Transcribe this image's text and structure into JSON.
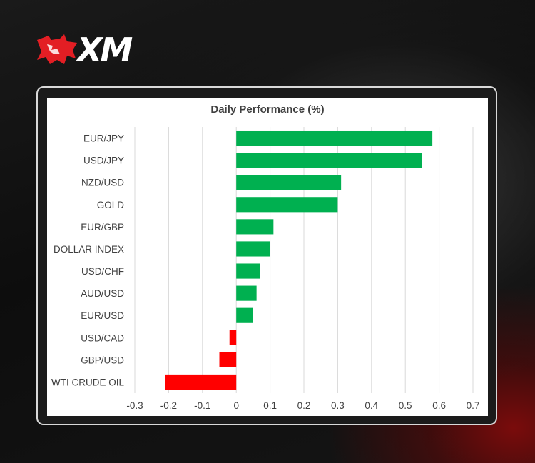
{
  "brand": {
    "logo_text": "XM",
    "logo_icon": "bull-icon",
    "colors": {
      "logo_red": "#e31e24",
      "logo_text": "#ffffff"
    }
  },
  "chart_data": {
    "type": "bar",
    "orientation": "horizontal",
    "title": "Daily Performance (%)",
    "xlabel": "",
    "ylabel": "",
    "xlim": [
      -0.3,
      0.7
    ],
    "x_ticks": [
      -0.3,
      -0.2,
      -0.1,
      0,
      0.1,
      0.2,
      0.3,
      0.4,
      0.5,
      0.6,
      0.7
    ],
    "x_tick_labels": [
      "-0.3",
      "-0.2",
      "-0.1",
      "0",
      "0.1",
      "0.2",
      "0.3",
      "0.4",
      "0.5",
      "0.6",
      "0.7"
    ],
    "grid": "vertical",
    "legend": "none",
    "categories": [
      "EUR/JPY",
      "USD/JPY",
      "NZD/USD",
      "GOLD",
      "EUR/GBP",
      "DOLLAR INDEX",
      "USD/CHF",
      "AUD/USD",
      "EUR/USD",
      "USD/CAD",
      "GBP/USD",
      "WTI CRUDE OIL"
    ],
    "values": [
      0.58,
      0.55,
      0.31,
      0.3,
      0.11,
      0.1,
      0.07,
      0.06,
      0.05,
      -0.02,
      -0.05,
      -0.21
    ],
    "colors": {
      "positive": "#00b050",
      "negative": "#ff0000",
      "grid": "#d9d9d9",
      "text": "#404040"
    }
  }
}
